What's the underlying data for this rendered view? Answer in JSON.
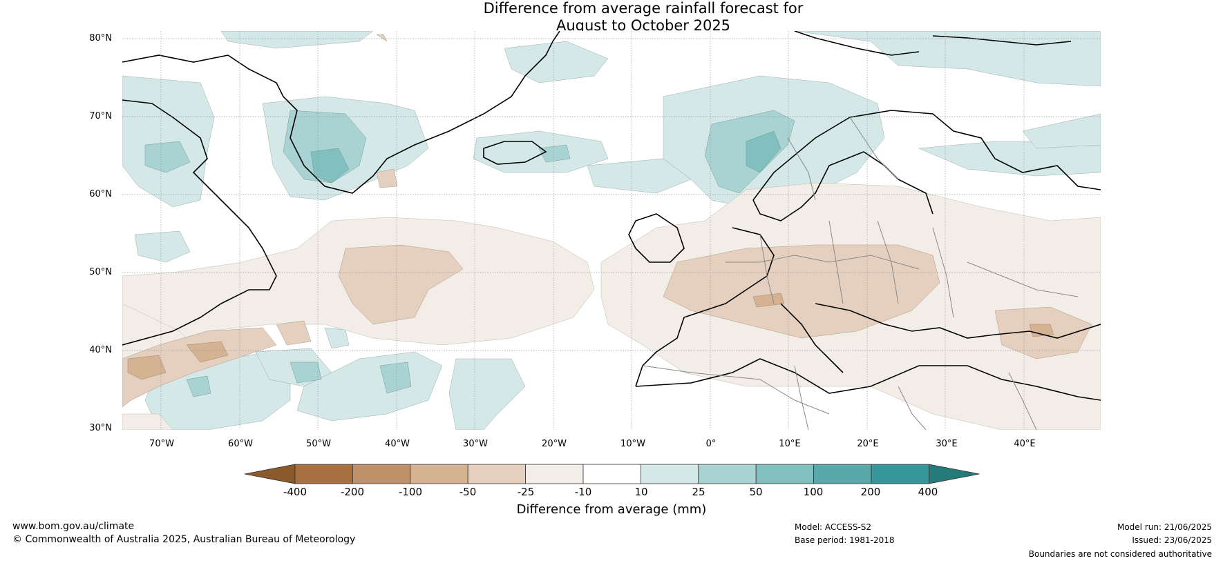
{
  "title_line1": "Difference from average rainfall forecast for",
  "title_line2": "August to October 2025",
  "latitudes": [
    "80°N",
    "70°N",
    "60°N",
    "50°N",
    "40°N",
    "30°N"
  ],
  "longitudes": [
    "70°W",
    "60°W",
    "50°W",
    "40°W",
    "30°W",
    "20°W",
    "10°W",
    "0°",
    "10°E",
    "20°E",
    "30°E",
    "40°E"
  ],
  "colorbar": {
    "ticks": [
      "-400",
      "-200",
      "-100",
      "-50",
      "-25",
      "-10",
      "10",
      "25",
      "50",
      "100",
      "200",
      "400"
    ],
    "colors": [
      "#8b5a2b",
      "#a8703f",
      "#c09068",
      "#d4b292",
      "#e5d0bf",
      "#f3ede7",
      "#ffffff",
      "#d4e8e8",
      "#a9d3d3",
      "#82bfbf",
      "#5aa9aa",
      "#35979a",
      "#257a7a"
    ],
    "label": "Difference from average (mm)"
  },
  "footer": {
    "website": "www.bom.gov.au/climate",
    "copyright": "© Commonwealth of Australia 2025, Australian Bureau of Meteorology",
    "model": "Model: ACCESS-S2",
    "base_period": "Base period: 1981-2018",
    "model_run": "Model run: 21/06/2025",
    "issued": "Issued: 23/06/2025",
    "disclaimer": "Boundaries are not considered authoritative"
  }
}
